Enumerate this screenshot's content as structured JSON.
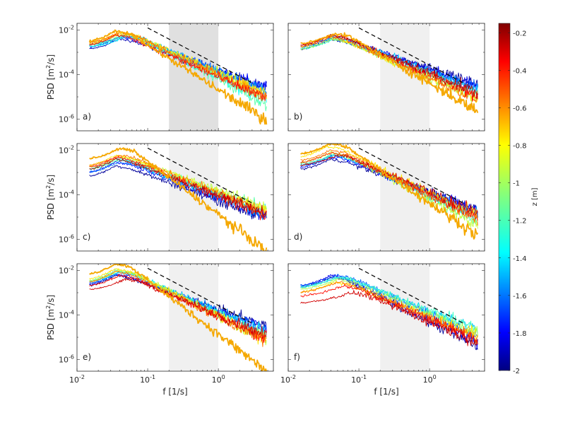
{
  "chart_data": {
    "type": "line",
    "x_scale": "log",
    "y_scale": "log",
    "xlim": [
      0.01,
      6
    ],
    "ylim": [
      3e-07,
      0.02
    ],
    "x_tick_values": [
      0.01,
      0.1,
      1
    ],
    "x_tick_base": "10",
    "x_tick_exponents": [
      "-2",
      "-1",
      "0"
    ],
    "y_tick_values": [
      0.01,
      0.0001,
      1e-06
    ],
    "y_tick_base": "10",
    "y_tick_exponents": [
      "-2",
      "-4",
      "-6"
    ],
    "xlabel": "f [1/s]",
    "ylabel_main": "PSD [m",
    "ylabel_sup": "2",
    "ylabel_tail": "/s]",
    "shaded_band": [
      0.2,
      1
    ],
    "reference_line": {
      "slope": -1.67,
      "x": [
        0.1,
        3.2
      ],
      "style": "dashed",
      "color": "#000000"
    },
    "colorbar": {
      "label": "z [m]",
      "range": [
        -2,
        -0.15
      ],
      "tick_values": [
        -0.2,
        -0.4,
        -0.6,
        -0.8,
        -1,
        -1.2,
        -1.4,
        -1.6,
        -1.8,
        -2
      ],
      "tick_labels": [
        "-0.2",
        "-0.4",
        "-0.6",
        "-0.8",
        "-1",
        "-1.2",
        "-1.4",
        "-1.6",
        "-1.8",
        "-2"
      ],
      "colormap": "jet"
    },
    "panels": [
      {
        "label": "a)",
        "band_color": "#e0e0e0",
        "series": [
          {
            "z": -1.9,
            "peak_f": 0.04,
            "peak": 0.004,
            "tail": 3e-05
          },
          {
            "z": -1.75,
            "peak_f": 0.04,
            "peak": 0.005,
            "tail": 3.5e-05
          },
          {
            "z": -1.6,
            "peak_f": 0.045,
            "peak": 0.006,
            "tail": 2.5e-05
          },
          {
            "z": -1.45,
            "peak_f": 0.05,
            "peak": 0.006,
            "tail": 1.8e-05
          },
          {
            "z": -1.3,
            "peak_f": 0.05,
            "peak": 0.005,
            "tail": 8e-06
          },
          {
            "z": -1.15,
            "peak_f": 0.05,
            "peak": 0.006,
            "tail": 6e-06
          },
          {
            "z": -1.0,
            "peak_f": 0.045,
            "peak": 0.007,
            "tail": 1.2e-05
          },
          {
            "z": -0.85,
            "peak_f": 0.04,
            "peak": 0.008,
            "tail": 2e-05
          },
          {
            "z": -0.7,
            "peak_f": 0.04,
            "peak": 0.007,
            "tail": 1.5e-05
          },
          {
            "z": -0.55,
            "peak_f": 0.04,
            "peak": 0.008,
            "tail": 1.2e-05
          },
          {
            "z": -0.4,
            "peak_f": 0.035,
            "peak": 0.006,
            "tail": 1.1e-05
          },
          {
            "z": -0.65,
            "peak_f": 0.035,
            "peak": 0.009,
            "tail": 1.2e-06,
            "thick": true
          }
        ]
      },
      {
        "label": "b)",
        "band_color": "#f0f0f0",
        "series": [
          {
            "z": -1.95,
            "peak_f": 0.04,
            "peak": 0.004,
            "tail": 5e-05
          },
          {
            "z": -1.8,
            "peak_f": 0.04,
            "peak": 0.005,
            "tail": 4e-05
          },
          {
            "z": -1.6,
            "peak_f": 0.04,
            "peak": 0.004,
            "tail": 3e-05
          },
          {
            "z": -1.4,
            "peak_f": 0.045,
            "peak": 0.005,
            "tail": 2.5e-05
          },
          {
            "z": -1.2,
            "peak_f": 0.045,
            "peak": 0.004,
            "tail": 1.5e-05
          },
          {
            "z": -1.0,
            "peak_f": 0.04,
            "peak": 0.004,
            "tail": 1.2e-05
          },
          {
            "z": -0.8,
            "peak_f": 0.035,
            "peak": 0.005,
            "tail": 1e-05
          },
          {
            "z": -0.55,
            "peak_f": 0.04,
            "peak": 0.005,
            "tail": 1e-05
          },
          {
            "z": -0.4,
            "peak_f": 0.04,
            "peak": 0.006,
            "tail": 1.5e-05
          },
          {
            "z": -0.25,
            "peak_f": 0.04,
            "peak": 0.006,
            "tail": 2e-05
          },
          {
            "z": -0.65,
            "peak_f": 0.045,
            "peak": 0.007,
            "tail": 3e-06,
            "thick": true
          }
        ]
      },
      {
        "label": "c)",
        "band_color": "#f0f0f0",
        "series": [
          {
            "z": -1.95,
            "peak_f": 0.035,
            "peak": 0.002,
            "tail": 1.2e-05
          },
          {
            "z": -1.75,
            "peak_f": 0.035,
            "peak": 0.003,
            "tail": 1.5e-05
          },
          {
            "z": -1.55,
            "peak_f": 0.04,
            "peak": 0.003,
            "tail": 1.4e-05
          },
          {
            "z": -1.35,
            "peak_f": 0.035,
            "peak": 0.004,
            "tail": 2.2e-05
          },
          {
            "z": -1.15,
            "peak_f": 0.04,
            "peak": 0.004,
            "tail": 3e-05
          },
          {
            "z": -0.95,
            "peak_f": 0.04,
            "peak": 0.005,
            "tail": 3.5e-05
          },
          {
            "z": -0.8,
            "peak_f": 0.035,
            "peak": 0.006,
            "tail": 2.5e-05
          },
          {
            "z": -0.6,
            "peak_f": 0.04,
            "peak": 0.006,
            "tail": 2e-05
          },
          {
            "z": -0.4,
            "peak_f": 0.035,
            "peak": 0.005,
            "tail": 1.6e-05
          },
          {
            "z": -0.25,
            "peak_f": 0.035,
            "peak": 0.004,
            "tail": 1.8e-05
          },
          {
            "z": -0.65,
            "peak_f": 0.04,
            "peak": 0.012,
            "tail": 4e-07,
            "thick": true
          }
        ]
      },
      {
        "label": "d)",
        "band_color": "#f0f0f0",
        "series": [
          {
            "z": -1.95,
            "peak_f": 0.04,
            "peak": 0.004,
            "tail": 3e-05
          },
          {
            "z": -1.75,
            "peak_f": 0.04,
            "peak": 0.005,
            "tail": 2.5e-05
          },
          {
            "z": -1.55,
            "peak_f": 0.04,
            "peak": 0.006,
            "tail": 2e-05
          },
          {
            "z": -1.35,
            "peak_f": 0.045,
            "peak": 0.006,
            "tail": 1.2e-05
          },
          {
            "z": -1.15,
            "peak_f": 0.045,
            "peak": 0.007,
            "tail": 8e-06
          },
          {
            "z": -0.95,
            "peak_f": 0.04,
            "peak": 0.008,
            "tail": 6e-06
          },
          {
            "z": -0.8,
            "peak_f": 0.035,
            "peak": 0.015,
            "tail": 1.5e-05
          },
          {
            "z": -0.6,
            "peak_f": 0.04,
            "peak": 0.01,
            "tail": 1e-05
          },
          {
            "z": -0.45,
            "peak_f": 0.04,
            "peak": 0.008,
            "tail": 1.2e-05
          },
          {
            "z": -0.3,
            "peak_f": 0.05,
            "peak": 0.006,
            "tail": 2e-05
          },
          {
            "z": -0.65,
            "peak_f": 0.04,
            "peak": 0.02,
            "tail": 2e-06,
            "thick": true
          }
        ]
      },
      {
        "label": "e)",
        "band_color": "#f0f0f0",
        "series": [
          {
            "z": -1.95,
            "peak_f": 0.035,
            "peak": 0.006,
            "tail": 4e-05
          },
          {
            "z": -1.75,
            "peak_f": 0.035,
            "peak": 0.007,
            "tail": 3e-05
          },
          {
            "z": -1.55,
            "peak_f": 0.04,
            "peak": 0.008,
            "tail": 2.5e-05
          },
          {
            "z": -1.35,
            "peak_f": 0.04,
            "peak": 0.009,
            "tail": 2e-05
          },
          {
            "z": -1.15,
            "peak_f": 0.035,
            "peak": 0.01,
            "tail": 1.5e-05
          },
          {
            "z": -0.95,
            "peak_f": 0.04,
            "peak": 0.01,
            "tail": 1e-05
          },
          {
            "z": -0.8,
            "peak_f": 0.035,
            "peak": 0.012,
            "tail": 1e-05
          },
          {
            "z": -0.6,
            "peak_f": 0.035,
            "peak": 0.009,
            "tail": 1e-05
          },
          {
            "z": -0.4,
            "peak_f": 0.04,
            "peak": 0.006,
            "tail": 1.2e-05
          },
          {
            "z": -0.3,
            "peak_f": 0.05,
            "peak": 0.004,
            "tail": 1.5e-05
          },
          {
            "z": -0.65,
            "peak_f": 0.035,
            "peak": 0.02,
            "tail": 4e-07,
            "thick": true
          }
        ]
      },
      {
        "label": "f)",
        "band_color": "#f0f0f0",
        "series": [
          {
            "z": -1.95,
            "peak_f": 0.04,
            "peak": 0.005,
            "tail": 5e-06
          },
          {
            "z": -1.8,
            "peak_f": 0.04,
            "peak": 0.006,
            "tail": 8e-06
          },
          {
            "z": -1.6,
            "peak_f": 0.05,
            "peak": 0.006,
            "tail": 1.5e-05
          },
          {
            "z": -1.4,
            "peak_f": 0.05,
            "peak": 0.005,
            "tail": 3e-05
          },
          {
            "z": -1.2,
            "peak_f": 0.05,
            "peak": 0.005,
            "tail": 3e-05
          },
          {
            "z": -1.0,
            "peak_f": 0.05,
            "peak": 0.004,
            "tail": 2e-05
          },
          {
            "z": -0.8,
            "peak_f": 0.045,
            "peak": 0.003,
            "tail": 1.5e-05
          },
          {
            "z": -0.6,
            "peak_f": 0.05,
            "peak": 0.003,
            "tail": 1.2e-05
          },
          {
            "z": -0.4,
            "peak_f": 0.06,
            "peak": 0.002,
            "tail": 1e-05
          },
          {
            "z": -0.3,
            "peak_f": 0.08,
            "peak": 0.001,
            "tail": 8e-06
          }
        ]
      }
    ]
  }
}
